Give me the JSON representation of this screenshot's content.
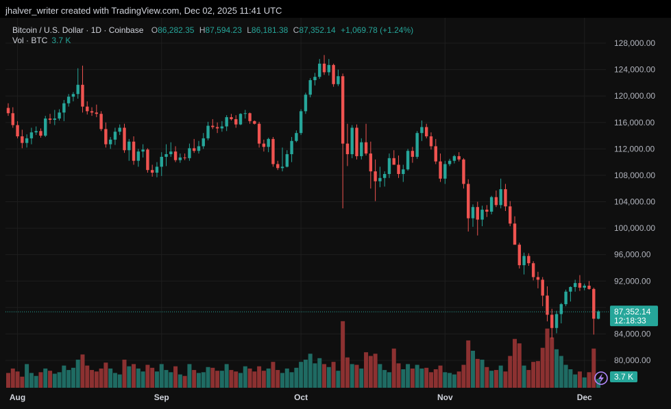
{
  "header": {
    "attribution": "jhalver_writer created with TradingView.com, Dec 02, 2025 11:41 UTC"
  },
  "legend": {
    "symbol": "Bitcoin / U.S. Dollar · 1D · Coinbase",
    "o_label": "O",
    "o_value": "86,282.35",
    "h_label": "H",
    "h_value": "87,594.23",
    "l_label": "L",
    "l_value": "86,181.38",
    "c_label": "C",
    "c_value": "87,352.14",
    "change": "+1,069.78 (+1.24%)",
    "vol_label": "Vol · BTC",
    "vol_value": "3.7 K"
  },
  "price_tag": {
    "price": "87,352.14",
    "countdown": "12:18:33"
  },
  "volume_tag": "3.7 K",
  "colors": {
    "up": "#26a69a",
    "down": "#ef5350",
    "up_vol": "#1f6b63",
    "down_vol": "#8c3131",
    "grid": "#1e1e1e",
    "price_line": "#26a69a"
  },
  "chart_data": {
    "type": "candlestick",
    "title": "Bitcoin / U.S. Dollar · 1D · Coinbase",
    "y_ticks": [
      80000,
      84000,
      88000,
      92000,
      96000,
      100000,
      104000,
      108000,
      112000,
      116000,
      120000,
      124000,
      128000
    ],
    "y_tick_labels": [
      "80,000.00",
      "84,000.00",
      "",
      "92,000.00",
      "96,000.00",
      "100,000.00",
      "104,000.00",
      "108,000.00",
      "112,000.00",
      "116,000.00",
      "120,000.00",
      "124,000.00",
      "128,000.00"
    ],
    "ylim": [
      76000,
      130000
    ],
    "x_labels": [
      {
        "index": 2,
        "label": "Aug"
      },
      {
        "index": 33,
        "label": "Sep"
      },
      {
        "index": 63,
        "label": "Oct"
      },
      {
        "index": 94,
        "label": "Nov"
      },
      {
        "index": 124,
        "label": "Dec"
      }
    ],
    "last_price": 87352.14,
    "candles": [
      [
        118200,
        118900,
        117000,
        117400,
        2.0
      ],
      [
        117400,
        118300,
        115200,
        115600,
        2.6
      ],
      [
        115600,
        116200,
        113600,
        113900,
        2.2
      ],
      [
        113900,
        114900,
        112100,
        112900,
        1.5
      ],
      [
        112900,
        114200,
        112200,
        113600,
        3.2
      ],
      [
        113600,
        115200,
        112700,
        114500,
        2.0
      ],
      [
        114500,
        115400,
        114100,
        114700,
        1.6
      ],
      [
        114700,
        115100,
        113700,
        114000,
        2.1
      ],
      [
        114000,
        117000,
        113800,
        116600,
        2.6
      ],
      [
        116600,
        117300,
        115800,
        116400,
        2.3
      ],
      [
        116400,
        117900,
        115600,
        116600,
        1.9
      ],
      [
        116600,
        118000,
        116300,
        117500,
        2.1
      ],
      [
        117500,
        119400,
        116200,
        118900,
        3.0
      ],
      [
        118900,
        120300,
        118400,
        119900,
        2.4
      ],
      [
        119900,
        120600,
        119200,
        120300,
        2.7
      ],
      [
        120300,
        124200,
        119600,
        121700,
        3.8
      ],
      [
        121700,
        124600,
        117500,
        118400,
        4.5
      ],
      [
        118400,
        119200,
        117200,
        117700,
        3.0
      ],
      [
        117700,
        118300,
        117000,
        117500,
        2.4
      ],
      [
        117500,
        118700,
        116800,
        117300,
        2.2
      ],
      [
        117300,
        117700,
        114700,
        115000,
        2.6
      ],
      [
        115000,
        116000,
        112200,
        112700,
        3.4
      ],
      [
        112700,
        113800,
        112000,
        113400,
        2.6
      ],
      [
        113400,
        115200,
        112600,
        114600,
        2.0
      ],
      [
        114600,
        115700,
        114100,
        115200,
        1.8
      ],
      [
        115200,
        115800,
        111400,
        111800,
        3.8
      ],
      [
        111800,
        113500,
        110200,
        113100,
        2.9
      ],
      [
        113100,
        113900,
        109600,
        110200,
        3.2
      ],
      [
        110200,
        112000,
        109300,
        111600,
        2.6
      ],
      [
        111600,
        112700,
        110700,
        111900,
        2.2
      ],
      [
        111900,
        112100,
        108400,
        108800,
        3.1
      ],
      [
        108800,
        109600,
        107800,
        108400,
        2.7
      ],
      [
        108400,
        110000,
        107700,
        109300,
        2.2
      ],
      [
        109300,
        111500,
        107900,
        110800,
        3.2
      ],
      [
        110800,
        112700,
        109400,
        111200,
        2.4
      ],
      [
        111200,
        113000,
        110800,
        111600,
        2.1
      ],
      [
        111600,
        112400,
        110000,
        110300,
        2.9
      ],
      [
        110300,
        111300,
        109900,
        110700,
        1.8
      ],
      [
        110700,
        111300,
        110300,
        110600,
        1.6
      ],
      [
        110600,
        112800,
        110200,
        112100,
        3.2
      ],
      [
        112100,
        113500,
        111400,
        111700,
        2.4
      ],
      [
        111700,
        113200,
        111300,
        112400,
        2.0
      ],
      [
        112400,
        114400,
        112000,
        113600,
        2.1
      ],
      [
        113600,
        116100,
        113300,
        115500,
        2.8
      ],
      [
        115500,
        116500,
        115000,
        115300,
        2.7
      ],
      [
        115300,
        116000,
        114400,
        115100,
        2.3
      ],
      [
        115100,
        116200,
        114600,
        115400,
        2.3
      ],
      [
        115400,
        117100,
        114700,
        116800,
        3.2
      ],
      [
        116800,
        117300,
        116300,
        116500,
        2.4
      ],
      [
        116500,
        117100,
        115200,
        115700,
        2.2
      ],
      [
        115700,
        117400,
        115600,
        117300,
        2.0
      ],
      [
        117300,
        117900,
        116600,
        117400,
        2.9
      ],
      [
        117400,
        117500,
        115800,
        116200,
        2.6
      ],
      [
        116200,
        116300,
        115700,
        115800,
        2.2
      ],
      [
        115800,
        116100,
        112200,
        112800,
        2.9
      ],
      [
        112800,
        113400,
        111600,
        112300,
        2.3
      ],
      [
        112300,
        113700,
        111500,
        113500,
        2.6
      ],
      [
        113500,
        113800,
        109300,
        109700,
        3.5
      ],
      [
        109700,
        110200,
        108800,
        109100,
        2.4
      ],
      [
        109100,
        112200,
        108600,
        109300,
        2.0
      ],
      [
        109300,
        111800,
        109200,
        111200,
        2.6
      ],
      [
        111200,
        113800,
        110000,
        113200,
        2.1
      ],
      [
        113200,
        114800,
        113000,
        114400,
        2.7
      ],
      [
        114400,
        118000,
        114100,
        117700,
        3.5
      ],
      [
        117700,
        120500,
        117300,
        120200,
        3.8
      ],
      [
        120200,
        122700,
        119800,
        122400,
        4.6
      ],
      [
        122400,
        123500,
        121600,
        122900,
        3.3
      ],
      [
        122900,
        125600,
        122600,
        124900,
        4.0
      ],
      [
        124900,
        126200,
        123200,
        123600,
        3.2
      ],
      [
        123600,
        125600,
        123100,
        124700,
        2.8
      ],
      [
        124700,
        124900,
        121400,
        121800,
        3.5
      ],
      [
        121800,
        124000,
        121500,
        123000,
        2.3
      ],
      [
        123000,
        123400,
        103000,
        112800,
        9.0
      ],
      [
        112800,
        115800,
        109400,
        111200,
        4.1
      ],
      [
        111200,
        115600,
        110600,
        115200,
        3.2
      ],
      [
        115200,
        115700,
        110400,
        110900,
        3.1
      ],
      [
        110900,
        113600,
        110400,
        113000,
        2.6
      ],
      [
        113000,
        115800,
        111000,
        111300,
        4.8
      ],
      [
        111300,
        113100,
        106000,
        108600,
        4.3
      ],
      [
        108600,
        110400,
        104100,
        107100,
        4.6
      ],
      [
        107100,
        109300,
        106200,
        107600,
        3.2
      ],
      [
        107600,
        108600,
        106300,
        108200,
        2.4
      ],
      [
        108200,
        111300,
        107600,
        110600,
        2.1
      ],
      [
        110600,
        111800,
        109900,
        109600,
        5.3
      ],
      [
        109600,
        111000,
        107600,
        108200,
        3.3
      ],
      [
        108200,
        109600,
        107000,
        108900,
        2.5
      ],
      [
        108900,
        112000,
        108700,
        111700,
        3.2
      ],
      [
        111700,
        112300,
        109900,
        110800,
        2.6
      ],
      [
        110800,
        114700,
        110500,
        114400,
        3.1
      ],
      [
        114400,
        116300,
        113200,
        115300,
        2.6
      ],
      [
        115300,
        115800,
        113600,
        113900,
        2.7
      ],
      [
        113900,
        114500,
        111900,
        112400,
        2.1
      ],
      [
        112400,
        113500,
        109700,
        110100,
        2.5
      ],
      [
        110100,
        111300,
        107000,
        107500,
        3.0
      ],
      [
        107500,
        110200,
        106700,
        109700,
        2.1
      ],
      [
        109700,
        110500,
        109400,
        110200,
        2.0
      ],
      [
        110200,
        111100,
        109800,
        110900,
        1.8
      ],
      [
        110900,
        111500,
        110100,
        110400,
        2.2
      ],
      [
        110400,
        110600,
        106000,
        106700,
        3.1
      ],
      [
        106700,
        107400,
        99500,
        101500,
        6.4
      ],
      [
        101500,
        103600,
        100200,
        103200,
        5.0
      ],
      [
        103200,
        104000,
        98900,
        101300,
        3.9
      ],
      [
        101300,
        103400,
        100300,
        102800,
        3.8
      ],
      [
        102800,
        103500,
        101700,
        102500,
        2.8
      ],
      [
        102500,
        104900,
        102100,
        104700,
        2.3
      ],
      [
        104700,
        105700,
        103200,
        103500,
        2.4
      ],
      [
        103500,
        107500,
        103000,
        105900,
        3.0
      ],
      [
        105900,
        106700,
        102600,
        103300,
        2.2
      ],
      [
        103300,
        104100,
        100300,
        100700,
        4.3
      ],
      [
        100700,
        101800,
        98000,
        97500,
        6.6
      ],
      [
        97500,
        97800,
        93900,
        94400,
        6.0
      ],
      [
        94400,
        96300,
        93000,
        95800,
        3.0
      ],
      [
        95800,
        96200,
        94300,
        94700,
        2.4
      ],
      [
        94700,
        95000,
        92100,
        92600,
        3.5
      ],
      [
        92600,
        93400,
        90900,
        92200,
        3.6
      ],
      [
        92200,
        92600,
        88200,
        89800,
        5.4
      ],
      [
        89800,
        91200,
        85900,
        86900,
        8.0
      ],
      [
        86900,
        87800,
        83300,
        84900,
        6.8
      ],
      [
        84900,
        87500,
        84100,
        87000,
        5.2
      ],
      [
        87000,
        88700,
        85600,
        88500,
        4.3
      ],
      [
        88500,
        90700,
        88200,
        90400,
        3.1
      ],
      [
        90400,
        91200,
        88900,
        91100,
        2.5
      ],
      [
        91100,
        92200,
        90400,
        91700,
        1.8
      ],
      [
        91700,
        92900,
        90500,
        91000,
        2.2
      ],
      [
        91000,
        91600,
        90600,
        91300,
        1.4
      ],
      [
        91300,
        92000,
        90700,
        90800,
        2.1
      ],
      [
        90800,
        91000,
        83900,
        86300,
        5.3
      ],
      [
        86300,
        87600,
        86200,
        87400,
        1.2
      ]
    ],
    "candle_format": "[open, high, low, close, volume_k]"
  }
}
